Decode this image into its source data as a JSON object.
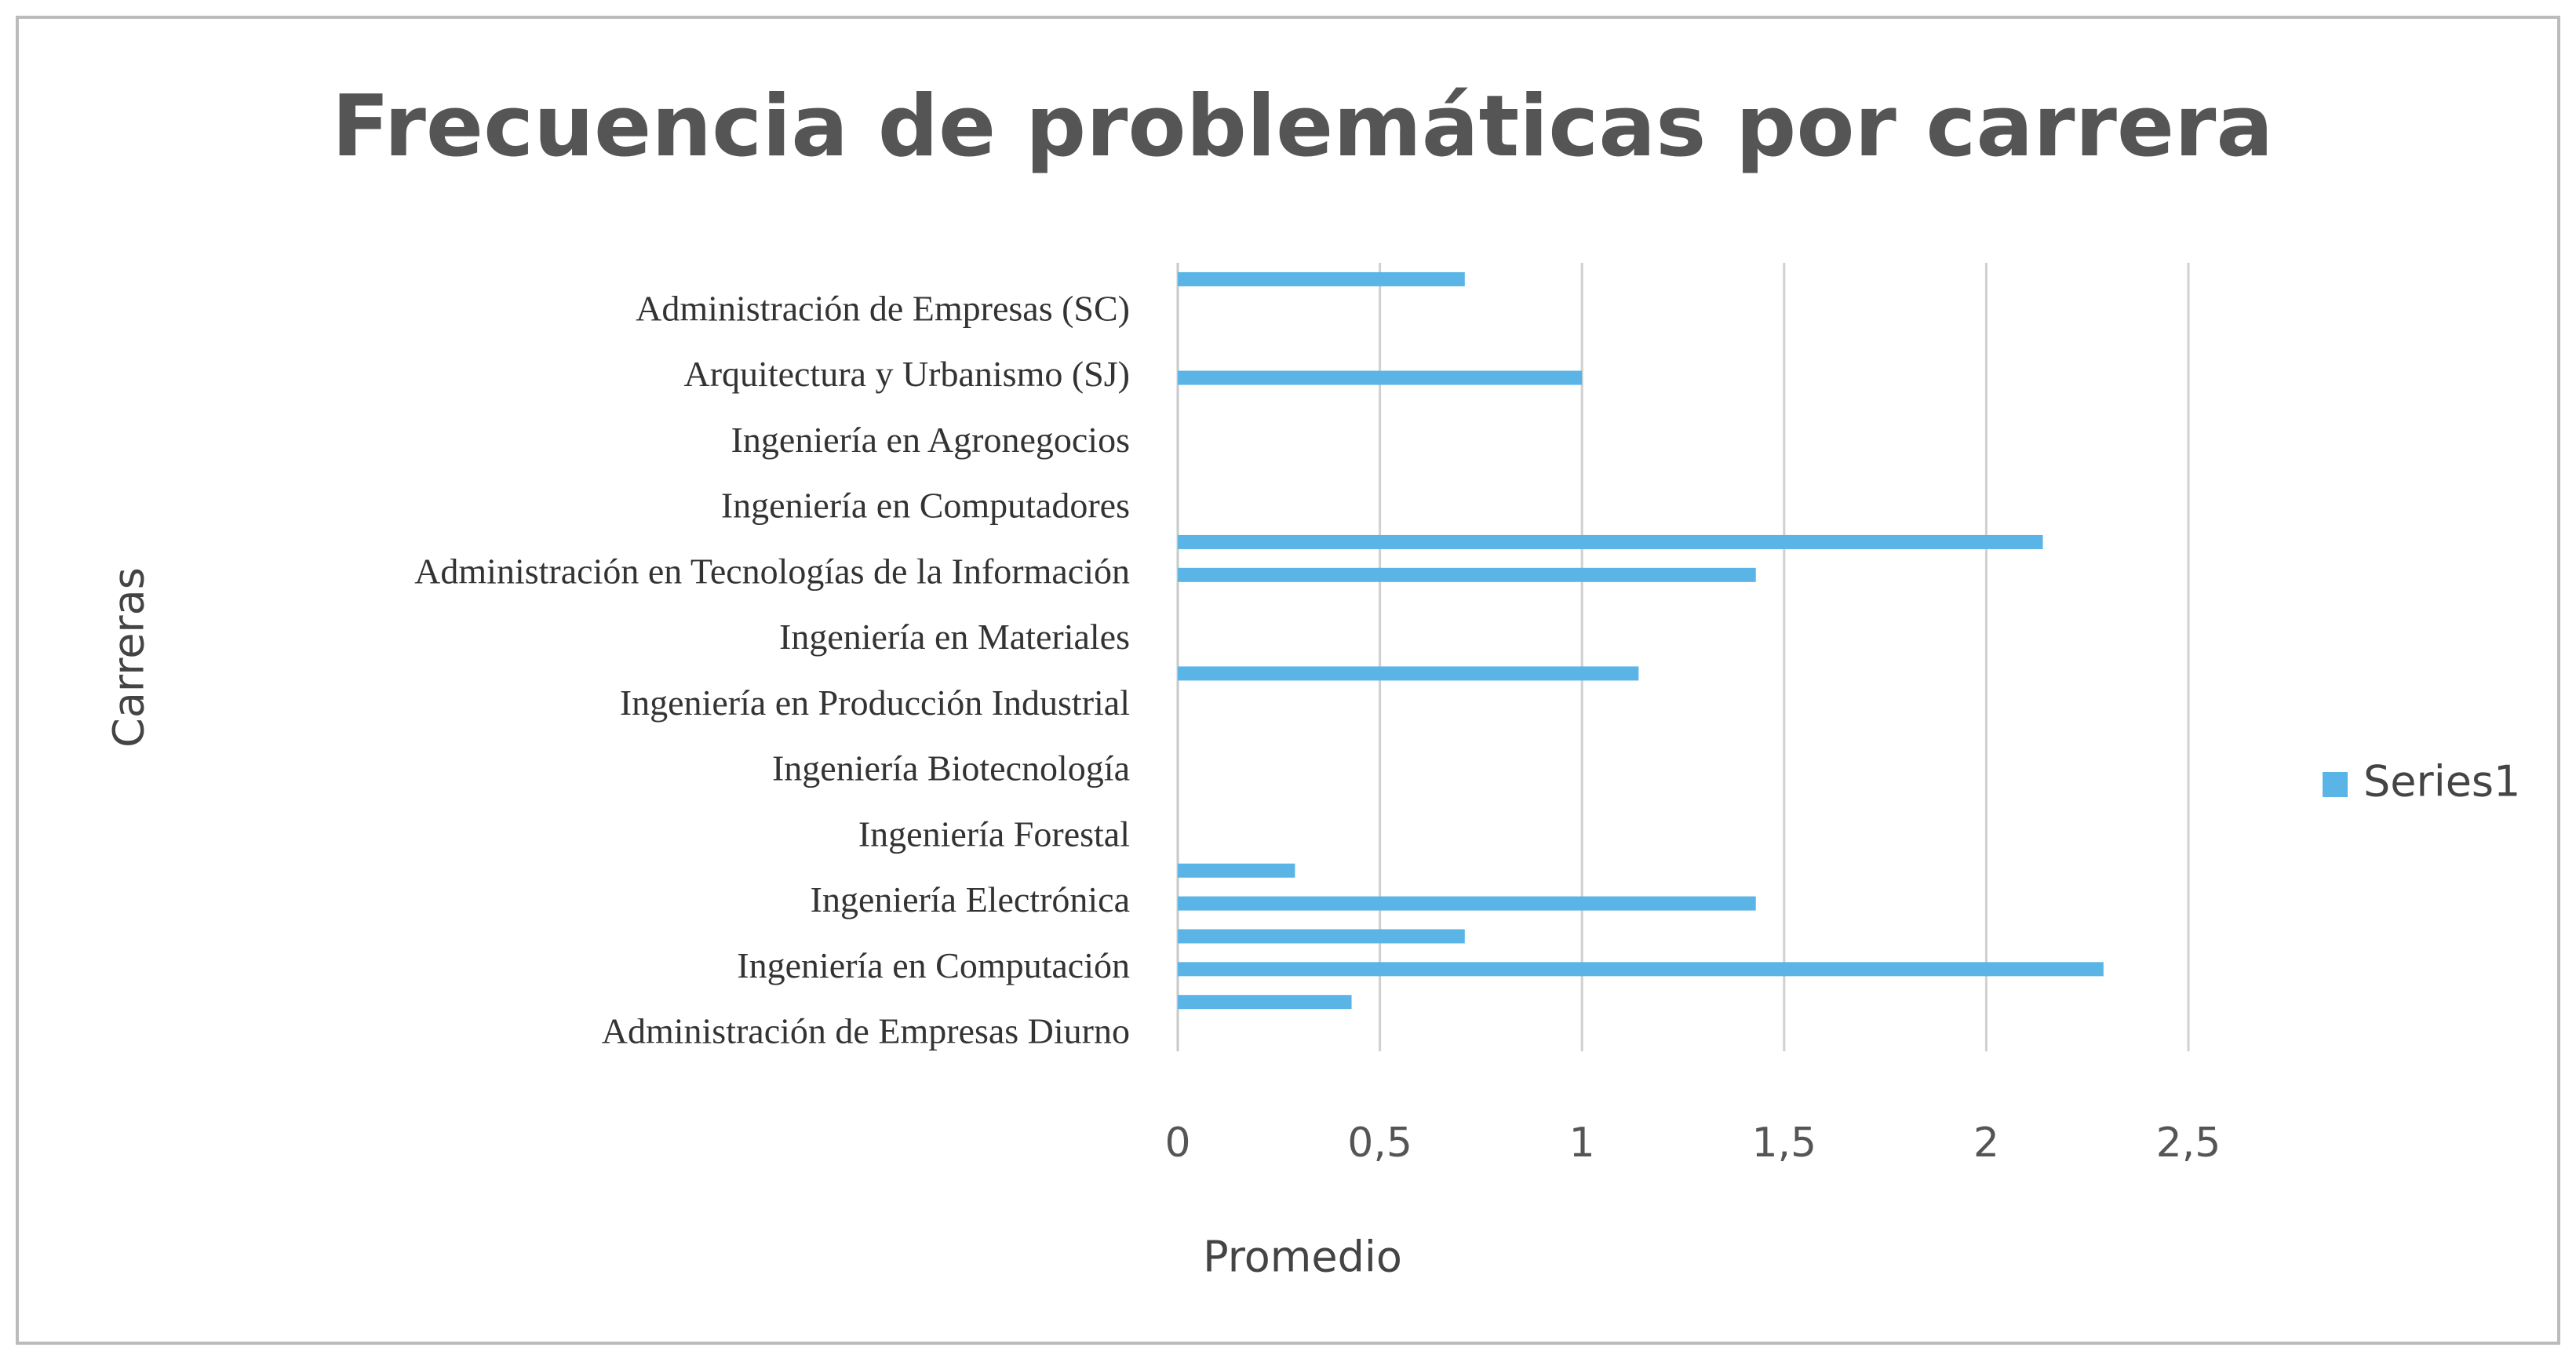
{
  "chart_data": {
    "type": "hbar",
    "title": "Frecuencia de problemáticas por carrera",
    "x_label": "Promedio",
    "y_label": "Carreras",
    "categories": [
      "Administración de Empresas Diurno",
      null,
      "Ingeniería en Computación",
      null,
      "Ingeniería Electrónica",
      null,
      "Ingeniería Forestal",
      null,
      "Ingeniería Biotecnología",
      null,
      "Ingeniería en Producción Industrial",
      null,
      "Ingeniería en Materiales",
      null,
      "Administración en Tecnologías de la Información",
      null,
      "Ingeniería en Computadores",
      null,
      "Ingeniería en Agronegocios",
      null,
      "Arquitectura y Urbanismo (SJ)",
      null,
      "Administración de Empresas (SC)",
      null
    ],
    "series": [
      {
        "name": "Series1",
        "color": "#5ab4e6",
        "values": [
          0,
          0.43,
          2.29,
          0.71,
          1.43,
          0.29,
          0,
          0,
          0,
          0,
          0,
          1.14,
          0,
          0,
          1.43,
          2.14,
          0,
          0,
          0,
          0,
          1,
          0,
          0,
          0.71
        ]
      }
    ],
    "xlim": [
      0,
      2.5
    ],
    "xticks": [
      0,
      {
        "value": 0.5,
        "label": "0,5"
      },
      1,
      {
        "value": 1.5,
        "label": "1,5"
      },
      2,
      {
        "value": 2.5,
        "label": "2,5"
      }
    ],
    "grid": true,
    "legend": "right"
  }
}
